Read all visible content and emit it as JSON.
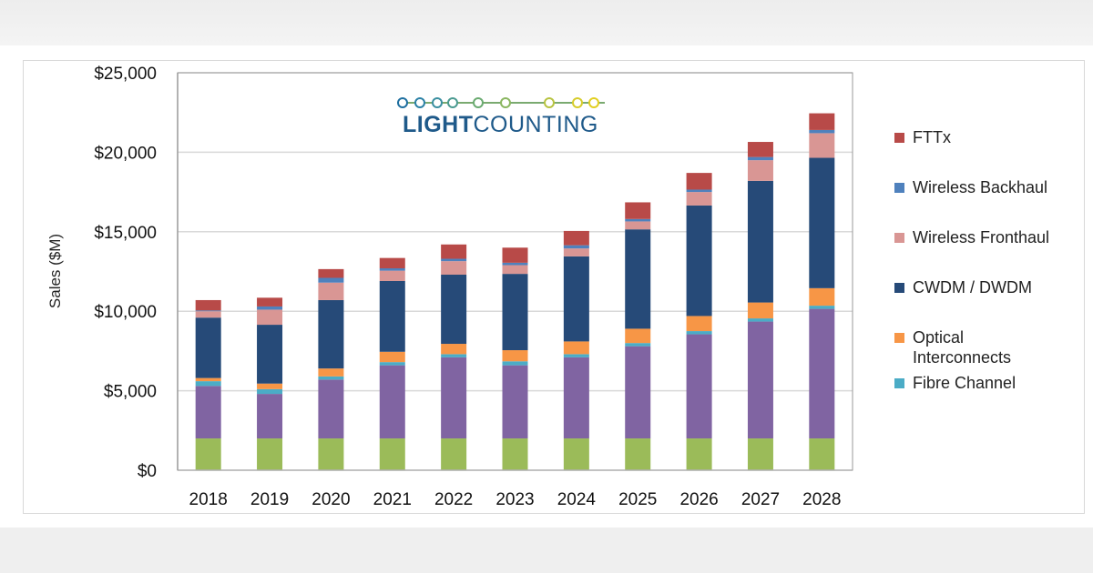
{
  "logo": {
    "text_bold": "LIGHT",
    "text_light": "COUNTING"
  },
  "chart_data": {
    "type": "bar",
    "stacked": true,
    "title": "",
    "xlabel": "",
    "ylabel": "Sales ($M)",
    "ylim": [
      0,
      25000
    ],
    "yticks": [
      "$0",
      "$5,000",
      "$10,000",
      "$15,000",
      "$20,000",
      "$25,000"
    ],
    "ytick_values": [
      0,
      5000,
      10000,
      15000,
      20000,
      25000
    ],
    "grid": true,
    "legend_position": "right",
    "categories": [
      "2018",
      "2019",
      "2020",
      "2021",
      "2022",
      "2023",
      "2024",
      "2025",
      "2026",
      "2027",
      "2028"
    ],
    "series": [
      {
        "color": "#9bbb59",
        "values": [
          2000,
          2000,
          2000,
          2000,
          2000,
          2000,
          2000,
          2000,
          2000,
          2000,
          2000
        ]
      },
      {
        "color": "#8064a2",
        "values": [
          3300,
          2800,
          3700,
          4600,
          5100,
          4600,
          5100,
          5800,
          6550,
          7350,
          8150
        ]
      },
      {
        "name": "Fibre Channel",
        "color": "#4bacc6",
        "values": [
          300,
          300,
          200,
          200,
          200,
          250,
          200,
          200,
          200,
          200,
          200
        ]
      },
      {
        "name": "Optical Interconnects",
        "color": "#f79646",
        "values": [
          200,
          350,
          500,
          650,
          650,
          700,
          800,
          900,
          950,
          1000,
          1100
        ]
      },
      {
        "name": "CWDM / DWDM",
        "color": "#264a78",
        "values": [
          3800,
          3700,
          4300,
          4450,
          4350,
          4800,
          5350,
          6250,
          6950,
          7650,
          8200
        ]
      },
      {
        "name": "Wireless Fronthaul",
        "color": "#d99694",
        "values": [
          400,
          950,
          1100,
          650,
          850,
          550,
          500,
          500,
          850,
          1300,
          1550
        ]
      },
      {
        "name": "Wireless Backhaul",
        "color": "#4f81bd",
        "values": [
          50,
          200,
          300,
          150,
          150,
          150,
          200,
          150,
          150,
          200,
          200
        ]
      },
      {
        "name": "FTTx",
        "color": "#b84a48",
        "values": [
          650,
          550,
          550,
          650,
          900,
          950,
          900,
          1050,
          1050,
          950,
          1050
        ]
      }
    ],
    "legend": [
      {
        "label": "FTTx",
        "color": "#b84a48"
      },
      {
        "label": "Wireless Backhaul",
        "color": "#4f81bd"
      },
      {
        "label": "Wireless Fronthaul",
        "color": "#d99694"
      },
      {
        "label": "CWDM / DWDM",
        "color": "#264a78"
      },
      {
        "label": "Optical Interconnects",
        "color": "#f79646"
      },
      {
        "label": "Fibre Channel",
        "color": "#4bacc6"
      }
    ]
  }
}
